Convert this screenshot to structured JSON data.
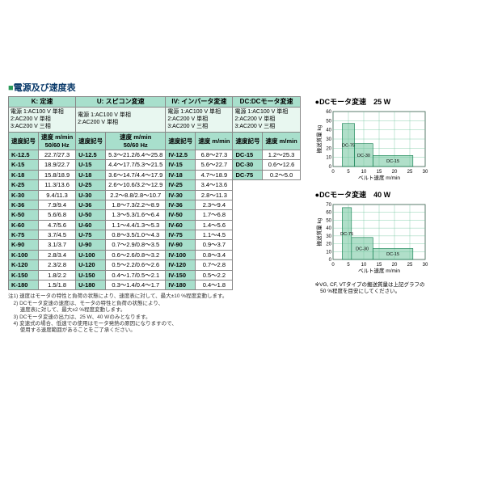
{
  "pageTitle": "電源及び速度表",
  "groups": {
    "K": {
      "hdr": "K: 定速",
      "sub": "電源 1:AC100 V 単相\n2:AC200 V 単相\n3:AC200 V 三相",
      "c1": "速度記号",
      "c2": "速度 m/min\n50/60 Hz"
    },
    "U": {
      "hdr": "U: スピコン変速",
      "sub": "電源 1:AC100 V 単相\n2:AC200 V 単相",
      "c1": "速度記号",
      "c2": "速度 m/min\n50/60 Hz"
    },
    "IV": {
      "hdr": "IV: インバータ変速",
      "sub": "電源 1:AC100 V 単相\n2:AC200 V 単相\n3:AC200 V 三相",
      "c1": "速度記号",
      "c2": "速度 m/min"
    },
    "DC": {
      "hdr": "DC:DCモータ変速",
      "sub": "電源 1:AC100 V 単相\n2:AC200 V 単相\n3:AC200 V 三相",
      "c1": "速度記号",
      "c2": "速度 m/min"
    }
  },
  "rows": [
    {
      "K": [
        "K-12.5",
        "22.7/27.3"
      ],
      "U": [
        "U-12.5",
        "5.3～21.2/6.4～25.8"
      ],
      "IV": [
        "IV-12.5",
        "6.8～27.3"
      ],
      "DC": [
        "DC-15",
        "1.2～25.3"
      ]
    },
    {
      "K": [
        "K-15",
        "18.9/22.7"
      ],
      "U": [
        "U-15",
        "4.4～17.7/5.3～21.5"
      ],
      "IV": [
        "IV-15",
        "5.6～22.7"
      ],
      "DC": [
        "DC-30",
        "0.6～12.6"
      ]
    },
    {
      "K": [
        "K-18",
        "15.8/18.9"
      ],
      "U": [
        "U-18",
        "3.6～14.7/4.4～17.9"
      ],
      "IV": [
        "IV-18",
        "4.7～18.9"
      ],
      "DC": [
        "DC-75",
        "0.2～5.0"
      ]
    },
    {
      "K": [
        "K-25",
        "11.3/13.6"
      ],
      "U": [
        "U-25",
        "2.6～10.6/3.2～12.9"
      ],
      "IV": [
        "IV-25",
        "3.4～13.6"
      ]
    },
    {
      "K": [
        "K-30",
        "9.4/11.3"
      ],
      "U": [
        "U-30",
        "2.2～8.8/2.8～10.7"
      ],
      "IV": [
        "IV-30",
        "2.8～11.3"
      ]
    },
    {
      "K": [
        "K-36",
        "7.9/9.4"
      ],
      "U": [
        "U-36",
        "1.8～7.3/2.2～8.9"
      ],
      "IV": [
        "IV-36",
        "2.3～9.4"
      ]
    },
    {
      "K": [
        "K-50",
        "5.6/6.8"
      ],
      "U": [
        "U-50",
        "1.3～5.3/1.6～6.4"
      ],
      "IV": [
        "IV-50",
        "1.7～6.8"
      ]
    },
    {
      "K": [
        "K-60",
        "4.7/5.6"
      ],
      "U": [
        "U-60",
        "1.1～4.4/1.3～5.3"
      ],
      "IV": [
        "IV-60",
        "1.4～5.6"
      ]
    },
    {
      "K": [
        "K-75",
        "3.7/4.5"
      ],
      "U": [
        "U-75",
        "0.8～3.5/1.0～4.3"
      ],
      "IV": [
        "IV-75",
        "1.1～4.5"
      ]
    },
    {
      "K": [
        "K-90",
        "3.1/3.7"
      ],
      "U": [
        "U-90",
        "0.7～2.9/0.8～3.5"
      ],
      "IV": [
        "IV-90",
        "0.9～3.7"
      ]
    },
    {
      "K": [
        "K-100",
        "2.8/3.4"
      ],
      "U": [
        "U-100",
        "0.6～2.6/0.8～3.2"
      ],
      "IV": [
        "IV-100",
        "0.8～3.4"
      ]
    },
    {
      "K": [
        "K-120",
        "2.3/2.8"
      ],
      "U": [
        "U-120",
        "0.5～2.2/0.6～2.6"
      ],
      "IV": [
        "IV-120",
        "0.7～2.8"
      ]
    },
    {
      "K": [
        "K-150",
        "1.8/2.2"
      ],
      "U": [
        "U-150",
        "0.4～1.7/0.5～2.1"
      ],
      "IV": [
        "IV-150",
        "0.5～2.2"
      ]
    },
    {
      "K": [
        "K-180",
        "1.5/1.8"
      ],
      "U": [
        "U-180",
        "0.3～1.4/0.4～1.7"
      ],
      "IV": [
        "IV-180",
        "0.4～1.8"
      ]
    }
  ],
  "charts": [
    {
      "title": "●DCモータ変速　25 W",
      "ymax": 60,
      "xmax": 30,
      "series": [
        {
          "x": 3,
          "w": 4,
          "h": 47,
          "label": "DC-75"
        },
        {
          "x": 7,
          "w": 6,
          "h": 25,
          "label": "DC-30"
        },
        {
          "x": 13,
          "w": 13,
          "h": 12,
          "label": "DC-15"
        }
      ],
      "ylabel": "搬送質量 kg",
      "xlabel": "ベルト速度 m/min",
      "ytick": 10,
      "xtick": 5,
      "bar_color": "#6fc49c",
      "grid_color": "#6fc49c",
      "bg": "#ffffff"
    },
    {
      "title": "●DCモータ変速　40 W",
      "ymax": 70,
      "xmax": 30,
      "series": [
        {
          "x": 3,
          "w": 3,
          "h": 66,
          "label": "DC-75"
        },
        {
          "x": 6,
          "w": 7,
          "h": 28,
          "label": "DC-30"
        },
        {
          "x": 13,
          "w": 13,
          "h": 14,
          "label": "DC-15"
        }
      ],
      "ylabel": "搬送質量 kg",
      "xlabel": "ベルト速度 m/min",
      "ytick": 10,
      "xtick": 5,
      "bar_color": "#6fc49c",
      "grid_color": "#6fc49c",
      "bg": "#ffffff"
    }
  ],
  "rightFoot": "※VG, CF, VTタイプの搬送質量は上記グラフの\n　50 %程度を目安にしてください。",
  "notes": "注1) 速度はモータの特性と負荷の状態により、速度表に対して、最大±10 %程度変動します。\n　2) DCモータ変速の速度は、モータの特性と負荷の状態により、\n　　 速度表に対して、最大±2 %程度変動します。\n　3) DCモータ変速の出力は、25 W、40 Wのみとなります。\n　4) 変速式の場合、低速での使用はモータ発熱の原因になりますので、\n　　 使用する速度範囲があることをご了承ください。"
}
